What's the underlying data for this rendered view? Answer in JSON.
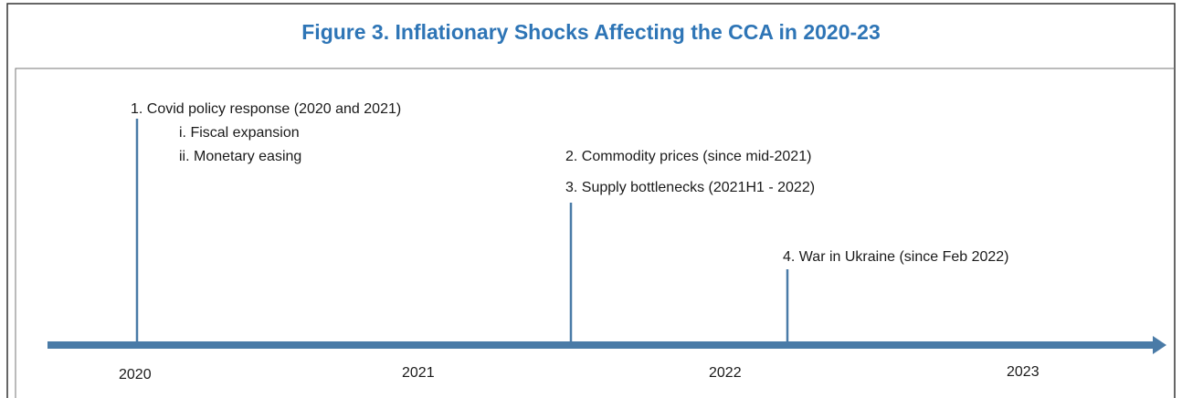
{
  "title": "Figure 3. Inflationary Shocks Affecting the CCA in 2020-23",
  "events": [
    {
      "label": "1. Covid policy response (2020 and 2021)",
      "items": [
        "i. Fiscal expansion",
        "ii. Monetary easing"
      ]
    },
    {
      "label": "2. Commodity prices (since mid-2021)"
    },
    {
      "label": "3. Supply bottlenecks (2021H1  - 2022)"
    },
    {
      "label": "4. War in Ukraine (since Feb 2022)"
    }
  ],
  "years": [
    "2020",
    "2021",
    "2022",
    "2023"
  ]
}
